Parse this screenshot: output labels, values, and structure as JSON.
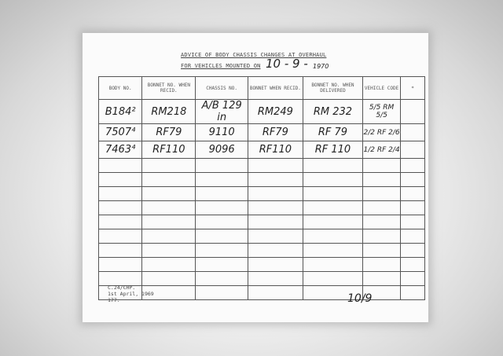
{
  "title_line1": "ADVICE OF BODY CHASSIS CHANGES AT OVERHAUL",
  "title_line2": "FOR VEHICLES MOUNTED ON",
  "date": "10 - 9 -",
  "year": "1970",
  "columns": [
    "BODY NO.",
    "BONNET NO. WHEN RECID.",
    "CHASSIS NO.",
    "BONNET WHEN RECID.",
    "BONNET NO. WHEN DELIVERED",
    "VEHICLE CODE",
    "*"
  ],
  "rows": [
    [
      "B184²",
      "RM218",
      "A/B 129 in",
      "RM249",
      "RM 232",
      "5/5 RM 5/5",
      ""
    ],
    [
      "7507⁴",
      "RF79",
      "9110",
      "RF79",
      "RF 79",
      "2/2 RF 2/6",
      ""
    ],
    [
      "7463⁴",
      "RF110",
      "9096",
      "RF110",
      "RF 110",
      "1/2 RF 2/4",
      ""
    ]
  ],
  "footer": [
    "C.24/CHP.",
    "1st April, 1969",
    "177."
  ],
  "initials": "10/9"
}
